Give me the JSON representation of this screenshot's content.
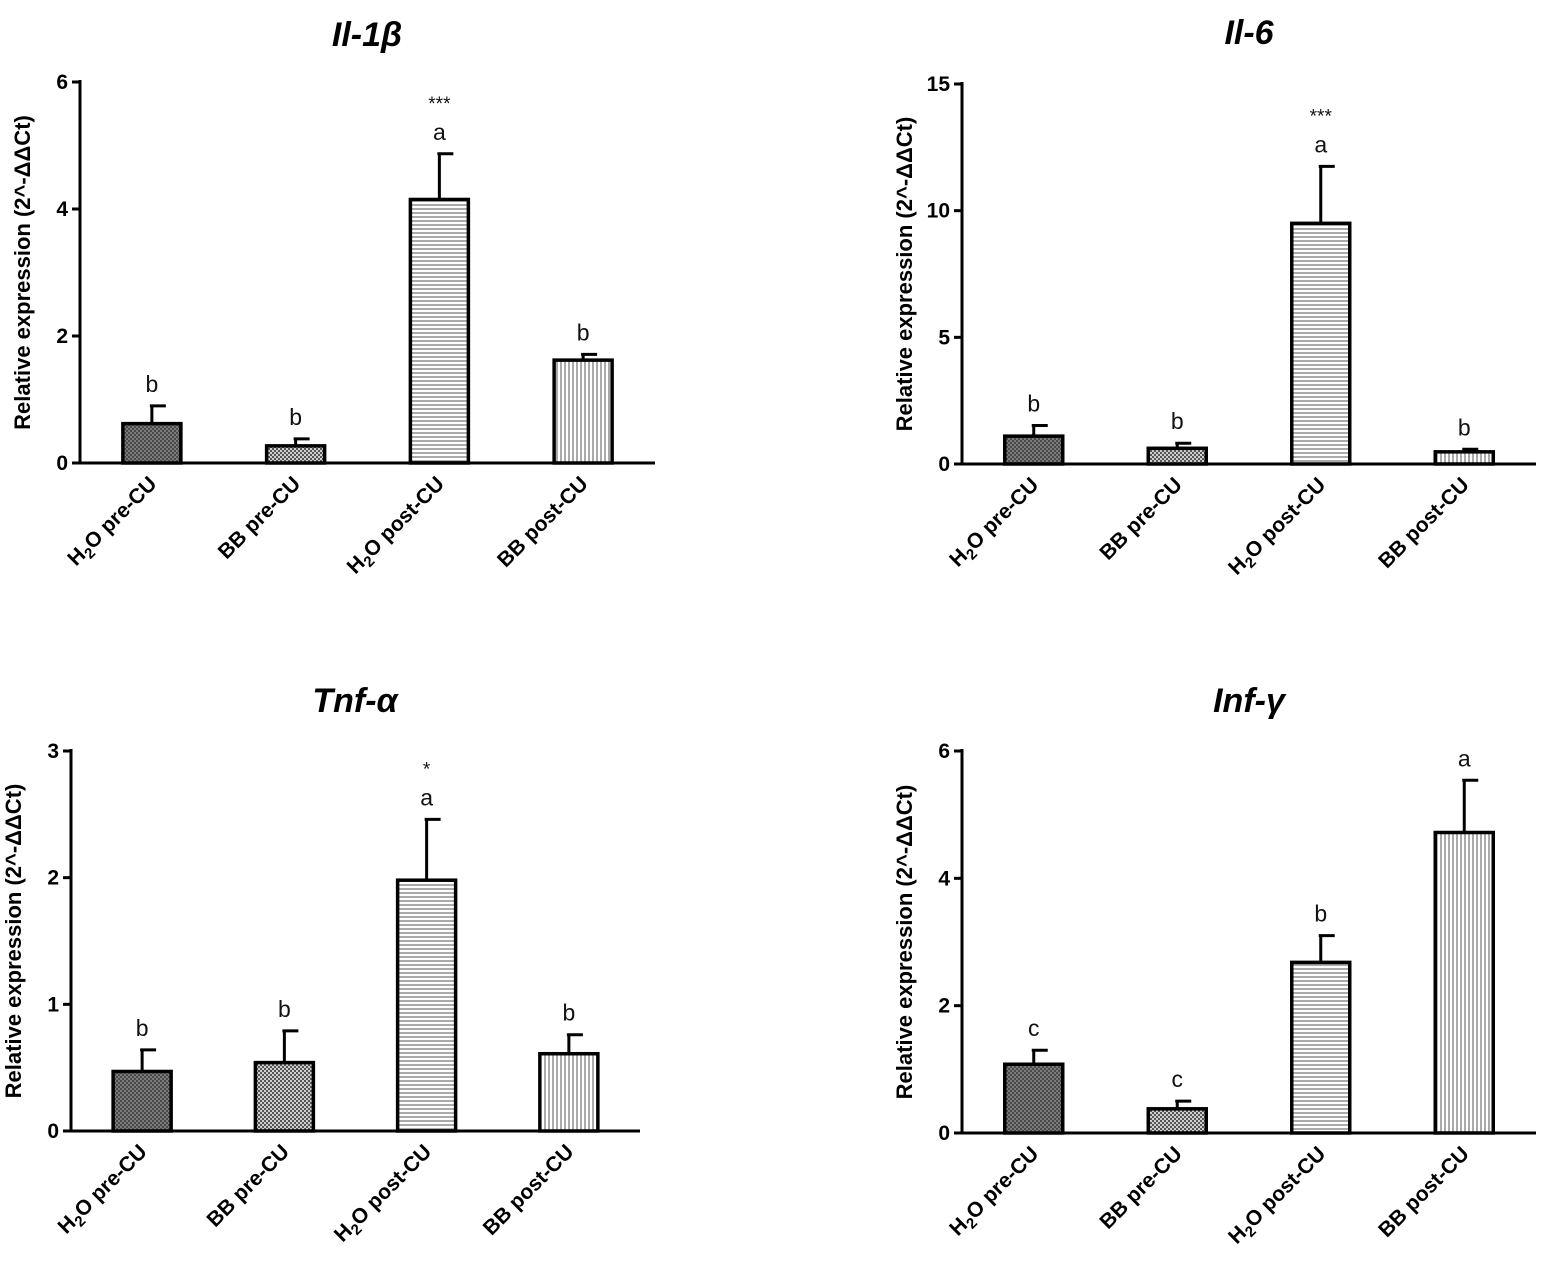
{
  "chart_data": [
    {
      "type": "bar",
      "title_base": "Il-1",
      "title_symbol": "β",
      "ylabel": "Relative expression  (2^-ΔΔCt)",
      "ylim": [
        0,
        6
      ],
      "yticks": [
        "0",
        "2",
        "4",
        "6"
      ],
      "categories": [
        {
          "main": "H",
          "sub": "2",
          "rest": "O pre-CU"
        },
        {
          "main": "BB pre-CU",
          "sub": "",
          "rest": ""
        },
        {
          "main": "H",
          "sub": "2",
          "rest": "O post-CU"
        },
        {
          "main": "BB post-CU",
          "sub": "",
          "rest": ""
        }
      ],
      "values": [
        0.62,
        0.27,
        4.15,
        1.62
      ],
      "errors": [
        0.28,
        0.11,
        0.72,
        0.09
      ],
      "letters": [
        "b",
        "b",
        "a",
        "b"
      ],
      "stars": [
        "",
        "",
        "***",
        ""
      ]
    },
    {
      "type": "bar",
      "title_base": "Il-6",
      "title_symbol": "",
      "ylabel": "Relative expression  (2^-ΔΔCt)",
      "ylim": [
        0,
        15
      ],
      "yticks": [
        "0",
        "5",
        "10",
        "15"
      ],
      "categories": [
        {
          "main": "H",
          "sub": "2",
          "rest": "O pre-CU"
        },
        {
          "main": "BB pre-CU",
          "sub": "",
          "rest": ""
        },
        {
          "main": "H",
          "sub": "2",
          "rest": "O post-CU"
        },
        {
          "main": "BB post-CU",
          "sub": "",
          "rest": ""
        }
      ],
      "values": [
        1.1,
        0.62,
        9.5,
        0.48
      ],
      "errors": [
        0.42,
        0.2,
        2.25,
        0.1
      ],
      "letters": [
        "b",
        "b",
        "a",
        "b"
      ],
      "stars": [
        "",
        "",
        "***",
        ""
      ]
    },
    {
      "type": "bar",
      "title_base": "Tnf-",
      "title_symbol": "α",
      "ylabel": "Relative expression  (2^-ΔΔCt)",
      "ylim": [
        0,
        3
      ],
      "yticks": [
        "0",
        "1",
        "2",
        "3"
      ],
      "categories": [
        {
          "main": "H",
          "sub": "2",
          "rest": "O pre-CU"
        },
        {
          "main": "BB pre-CU",
          "sub": "",
          "rest": ""
        },
        {
          "main": "H",
          "sub": "2",
          "rest": "O post-CU"
        },
        {
          "main": "BB post-CU",
          "sub": "",
          "rest": ""
        }
      ],
      "values": [
        0.47,
        0.54,
        1.98,
        0.61
      ],
      "errors": [
        0.17,
        0.25,
        0.48,
        0.15
      ],
      "letters": [
        "b",
        "b",
        "a",
        "b"
      ],
      "stars": [
        "",
        "",
        "*",
        ""
      ]
    },
    {
      "type": "bar",
      "title_base": "Inf-",
      "title_symbol": "γ",
      "ylabel": "Relative expression  (2^-ΔΔCt)",
      "ylim": [
        0,
        6
      ],
      "yticks": [
        "0",
        "2",
        "4",
        "6"
      ],
      "categories": [
        {
          "main": "H",
          "sub": "2",
          "rest": "O pre-CU"
        },
        {
          "main": "BB pre-CU",
          "sub": "",
          "rest": ""
        },
        {
          "main": "H",
          "sub": "2",
          "rest": "O post-CU"
        },
        {
          "main": "BB post-CU",
          "sub": "",
          "rest": ""
        }
      ],
      "values": [
        1.08,
        0.38,
        2.68,
        4.72
      ],
      "errors": [
        0.22,
        0.12,
        0.42,
        0.82
      ],
      "letters": [
        "c",
        "c",
        "b",
        "a"
      ],
      "stars": [
        "",
        "",
        "",
        ""
      ]
    }
  ]
}
